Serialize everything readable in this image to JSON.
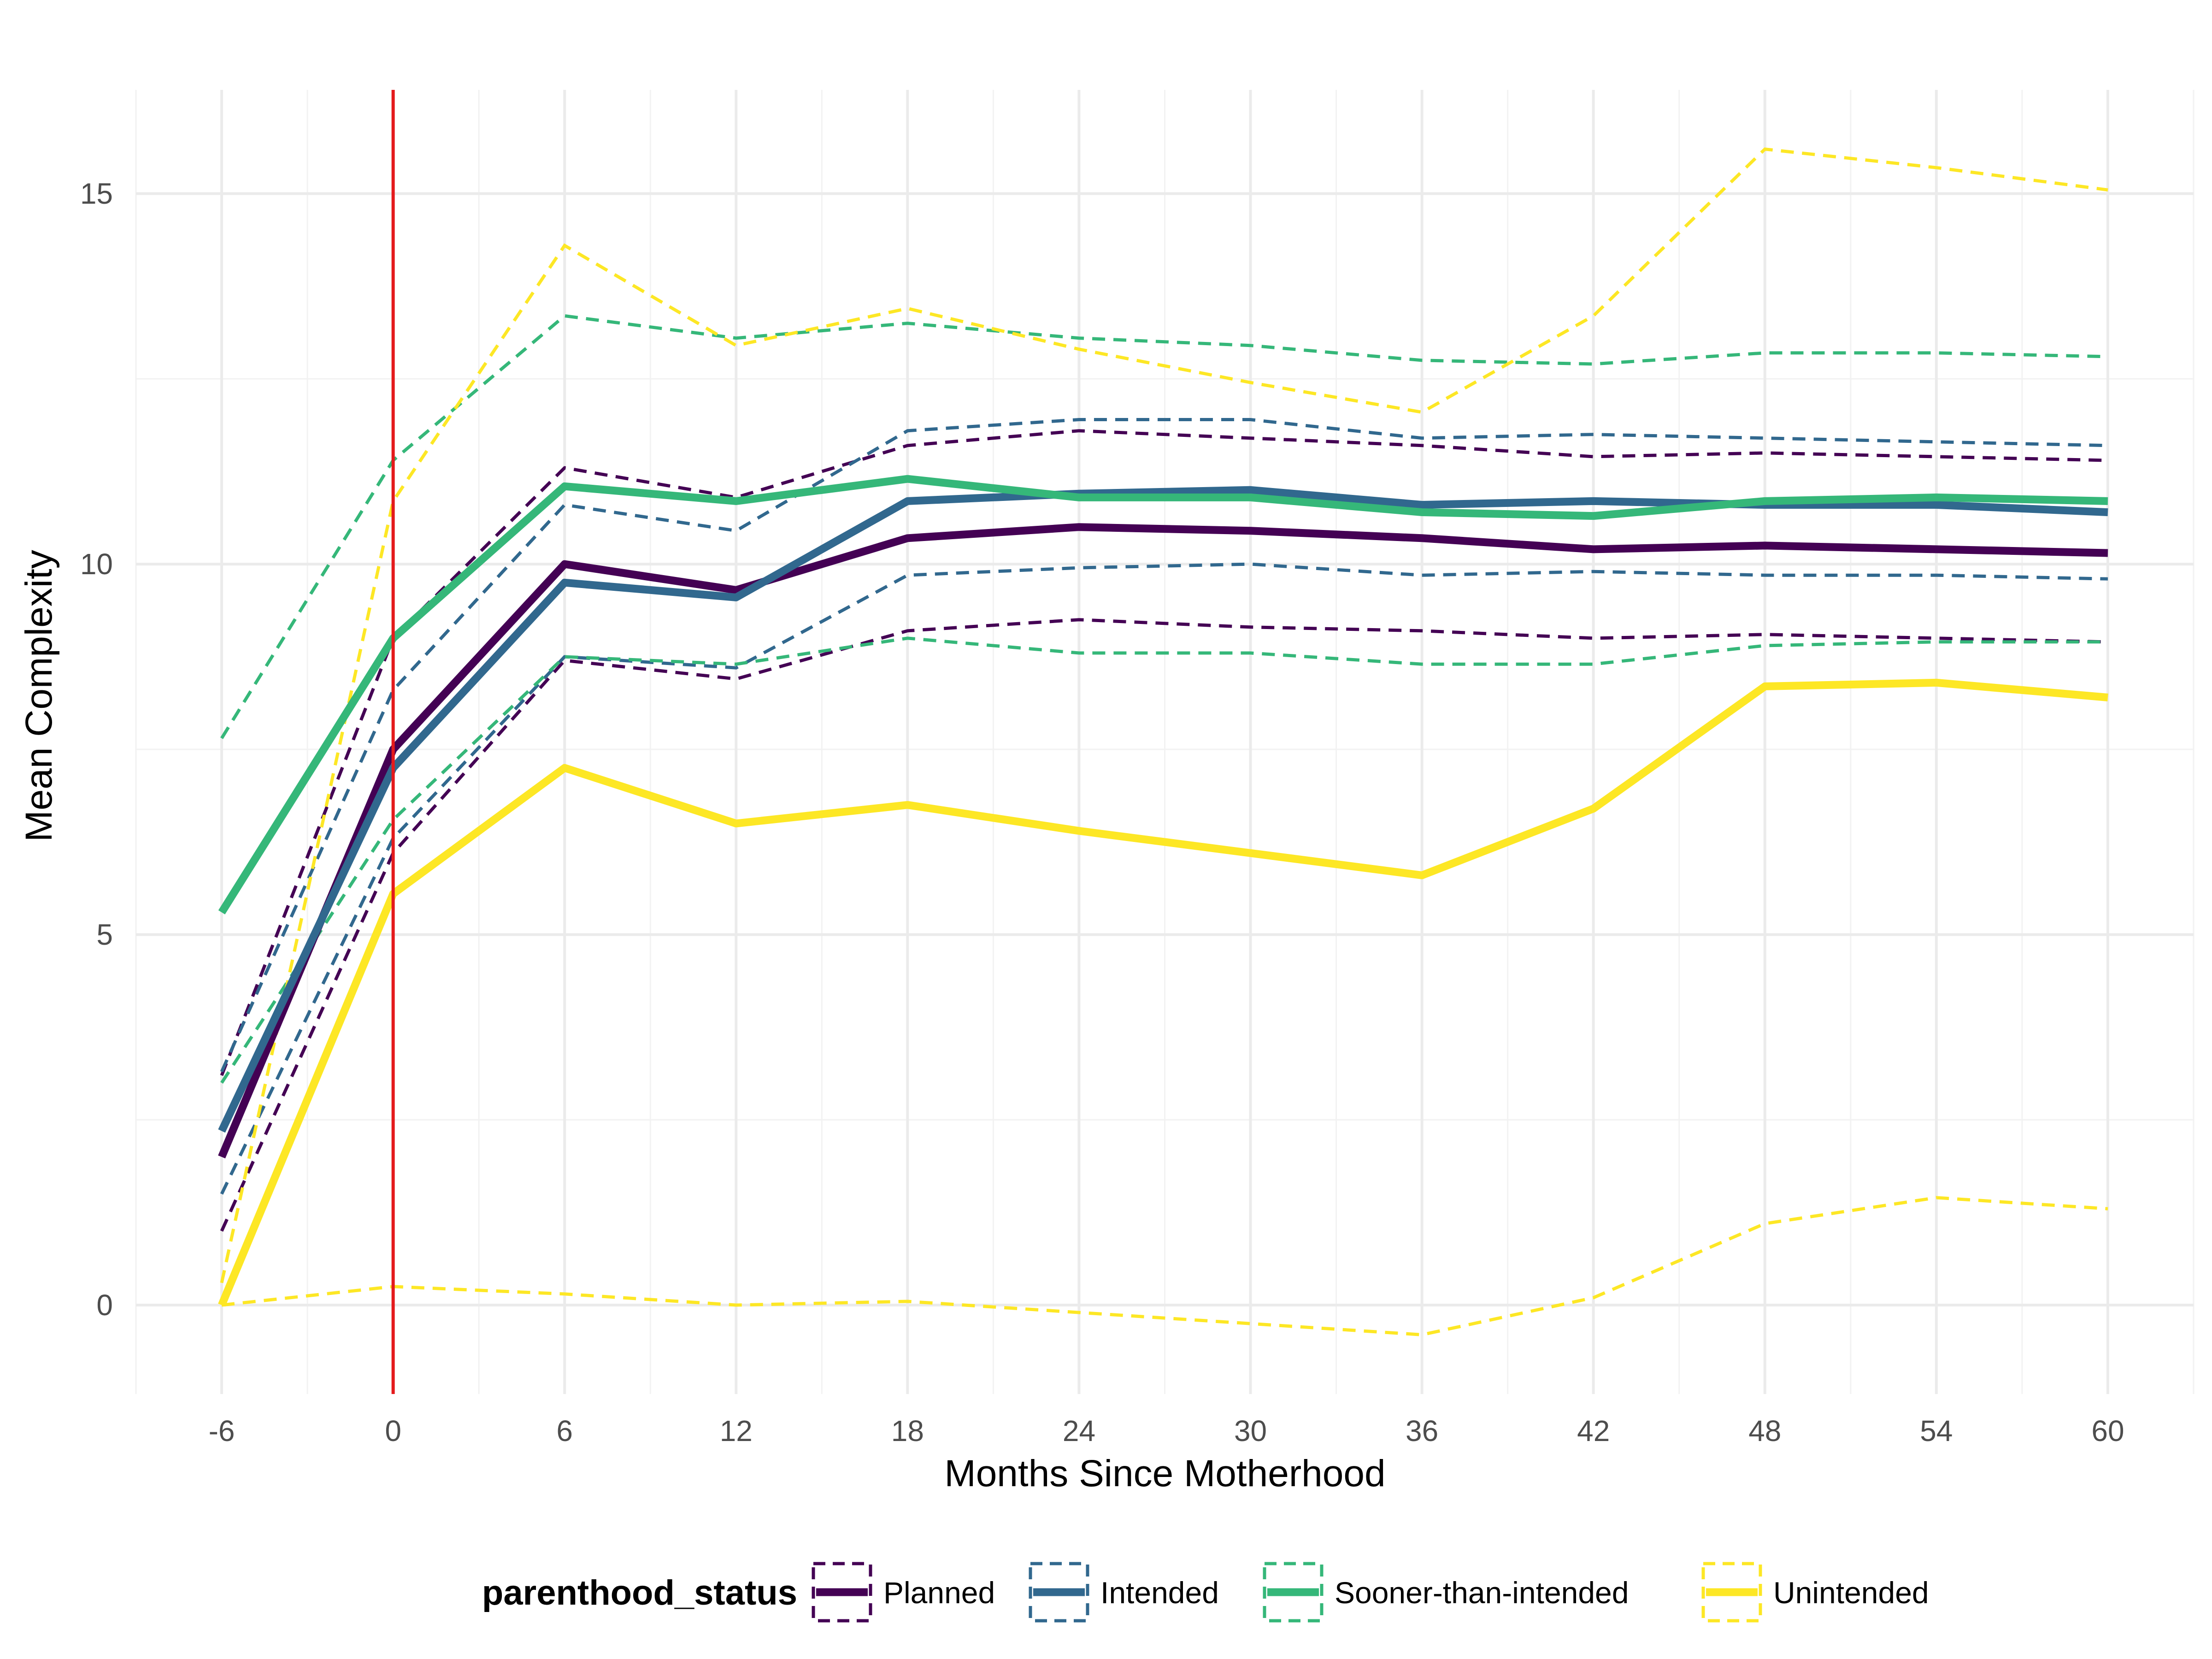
{
  "chart_data": {
    "type": "line",
    "xlabel": "Months Since Motherhood",
    "ylabel": "Mean Complexity",
    "x": [
      -6,
      0,
      6,
      12,
      18,
      24,
      30,
      36,
      42,
      48,
      54,
      60
    ],
    "x_ticks": [
      -6,
      0,
      6,
      12,
      18,
      24,
      30,
      36,
      42,
      48,
      54,
      60
    ],
    "y_ticks": [
      0,
      5,
      10,
      15
    ],
    "xlim": [
      -9,
      63
    ],
    "ylim": [
      -1.2,
      16.4
    ],
    "grid": true,
    "vline": {
      "x": 0,
      "color": "#e41a1c"
    },
    "legend": {
      "title": "parenthood_status",
      "position": "bottom"
    },
    "series": [
      {
        "name": "Planned",
        "color": "#440154",
        "mean": [
          2.0,
          7.5,
          10.0,
          9.65,
          10.35,
          10.5,
          10.45,
          10.35,
          10.2,
          10.25,
          10.2,
          10.15
        ],
        "upper": [
          3.1,
          9.0,
          11.3,
          10.9,
          11.6,
          11.8,
          11.7,
          11.6,
          11.45,
          11.5,
          11.45,
          11.4
        ],
        "lower": [
          1.0,
          6.1,
          8.7,
          8.45,
          9.1,
          9.25,
          9.15,
          9.1,
          9.0,
          9.05,
          9.0,
          8.95
        ]
      },
      {
        "name": "Intended",
        "color": "#31688e",
        "mean": [
          2.35,
          7.25,
          9.75,
          9.55,
          10.85,
          10.95,
          11.0,
          10.8,
          10.85,
          10.8,
          10.8,
          10.7
        ],
        "upper": [
          3.15,
          8.3,
          10.8,
          10.45,
          11.8,
          11.95,
          11.95,
          11.7,
          11.75,
          11.7,
          11.65,
          11.6
        ],
        "lower": [
          1.5,
          6.3,
          8.75,
          8.6,
          9.85,
          9.95,
          10.0,
          9.85,
          9.9,
          9.85,
          9.85,
          9.8
        ]
      },
      {
        "name": "Sooner-than-intended",
        "color": "#35b779",
        "mean": [
          5.3,
          9.0,
          11.05,
          10.85,
          11.15,
          10.9,
          10.9,
          10.7,
          10.65,
          10.85,
          10.9,
          10.85
        ],
        "upper": [
          7.65,
          11.4,
          13.35,
          13.05,
          13.25,
          13.05,
          12.95,
          12.75,
          12.7,
          12.85,
          12.85,
          12.8
        ],
        "lower": [
          3.0,
          6.55,
          8.75,
          8.65,
          9.0,
          8.8,
          8.8,
          8.65,
          8.65,
          8.9,
          8.95,
          8.95
        ]
      },
      {
        "name": "Unintended",
        "color": "#fde725",
        "mean": [
          0.0,
          5.55,
          7.25,
          6.5,
          6.75,
          6.4,
          6.1,
          5.8,
          6.7,
          8.35,
          8.4,
          8.2
        ],
        "upper": [
          0.3,
          10.85,
          14.3,
          12.95,
          13.45,
          12.9,
          12.45,
          12.05,
          13.35,
          15.6,
          15.35,
          15.05
        ],
        "lower": [
          0.0,
          0.25,
          0.15,
          0.0,
          0.05,
          -0.1,
          -0.25,
          -0.4,
          0.1,
          1.1,
          1.45,
          1.3
        ]
      }
    ]
  }
}
